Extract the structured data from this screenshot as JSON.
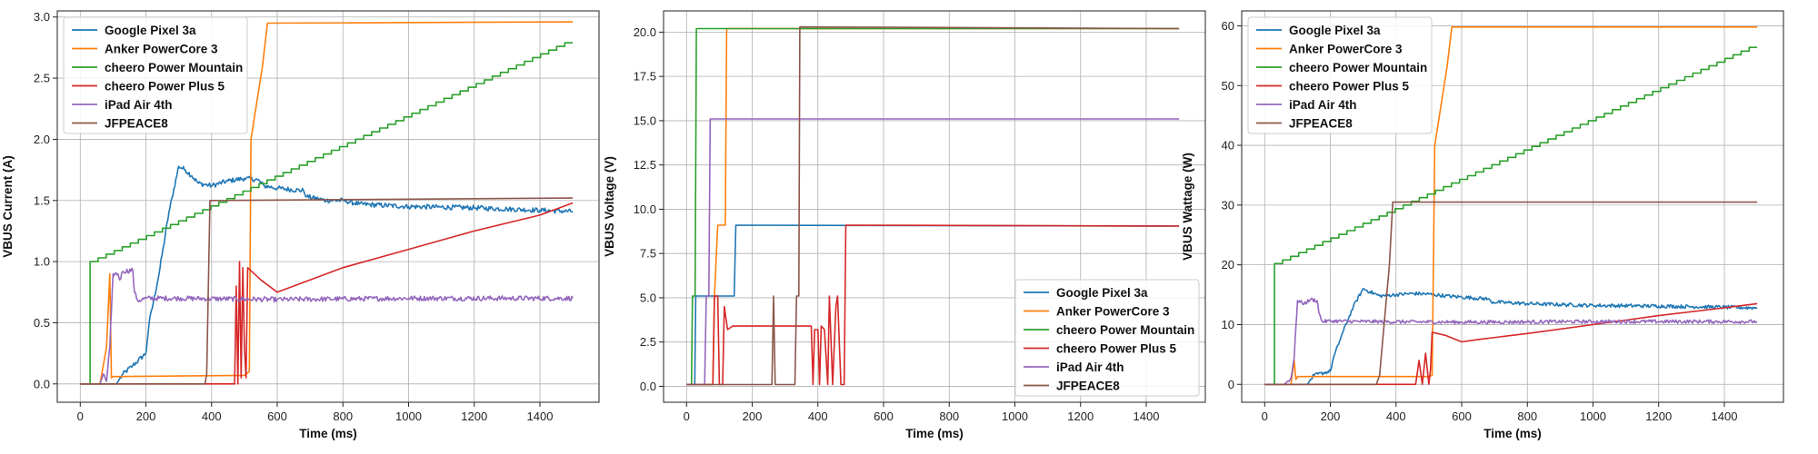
{
  "chart_data": [
    {
      "type": "line",
      "xlabel": "Time (ms)",
      "ylabel": "VBUS Current (A)",
      "xlim": [
        -70,
        1580
      ],
      "ylim": [
        -0.15,
        3.05
      ],
      "xticks": [
        0,
        200,
        400,
        600,
        800,
        1000,
        1200,
        1400
      ],
      "yticks": [
        0.0,
        0.5,
        1.0,
        1.5,
        2.0,
        2.5,
        3.0
      ],
      "ytick_labels": [
        "0.0",
        "0.5",
        "1.0",
        "1.5",
        "2.0",
        "2.5",
        "3.0"
      ],
      "grid": true,
      "legend_position": "upper-left",
      "series": [
        {
          "name": "Google Pixel 3a",
          "color": "#1f77b4",
          "noise": 0.02,
          "points": [
            [
              0,
              0
            ],
            [
              110,
              0
            ],
            [
              130,
              0.08
            ],
            [
              160,
              0.15
            ],
            [
              200,
              0.25
            ],
            [
              210,
              0.5
            ],
            [
              240,
              0.9
            ],
            [
              270,
              1.4
            ],
            [
              300,
              1.78
            ],
            [
              320,
              1.75
            ],
            [
              340,
              1.7
            ],
            [
              360,
              1.64
            ],
            [
              400,
              1.62
            ],
            [
              450,
              1.66
            ],
            [
              500,
              1.68
            ],
            [
              540,
              1.67
            ],
            [
              560,
              1.62
            ],
            [
              600,
              1.6
            ],
            [
              680,
              1.58
            ],
            [
              690,
              1.53
            ],
            [
              750,
              1.5
            ],
            [
              800,
              1.5
            ],
            [
              850,
              1.47
            ],
            [
              1000,
              1.45
            ],
            [
              1200,
              1.44
            ],
            [
              1300,
              1.43
            ],
            [
              1400,
              1.42
            ],
            [
              1500,
              1.41
            ]
          ]
        },
        {
          "name": "Anker PowerCore 3",
          "color": "#ff7f0e",
          "noise": 0,
          "points": [
            [
              0,
              0
            ],
            [
              60,
              0
            ],
            [
              80,
              0.3
            ],
            [
              90,
              0.9
            ],
            [
              95,
              0.05
            ],
            [
              100,
              0.06
            ],
            [
              500,
              0.07
            ],
            [
              515,
              0.1
            ],
            [
              520,
              2.0
            ],
            [
              555,
              2.6
            ],
            [
              570,
              2.95
            ],
            [
              1500,
              2.96
            ]
          ]
        },
        {
          "name": "cheero Power Mountain",
          "color": "#2ca02c",
          "noise": 0,
          "steps": 60,
          "points": [
            [
              0,
              0
            ],
            [
              25,
              0
            ],
            [
              30,
              1.0
            ],
            [
              1500,
              2.82
            ]
          ]
        },
        {
          "name": "cheero Power Plus 5",
          "color": "#d62728",
          "noise": 0,
          "points": [
            [
              0,
              0
            ],
            [
              470,
              0
            ],
            [
              475,
              0.8
            ],
            [
              480,
              0
            ],
            [
              485,
              1.0
            ],
            [
              490,
              0.05
            ],
            [
              495,
              0.95
            ],
            [
              500,
              0.3
            ],
            [
              505,
              0.05
            ],
            [
              510,
              0.95
            ],
            [
              550,
              0.85
            ],
            [
              600,
              0.75
            ],
            [
              650,
              0.8
            ],
            [
              800,
              0.95
            ],
            [
              1000,
              1.1
            ],
            [
              1200,
              1.25
            ],
            [
              1400,
              1.38
            ],
            [
              1500,
              1.48
            ]
          ]
        },
        {
          "name": "iPad Air 4th",
          "color": "#9467bd",
          "noise": 0.02,
          "points": [
            [
              0,
              0
            ],
            [
              60,
              0
            ],
            [
              70,
              0.08
            ],
            [
              80,
              0.02
            ],
            [
              90,
              0.3
            ],
            [
              95,
              0.6
            ],
            [
              100,
              0.9
            ],
            [
              115,
              0.9
            ],
            [
              120,
              0.85
            ],
            [
              130,
              0.92
            ],
            [
              160,
              0.93
            ],
            [
              165,
              0.75
            ],
            [
              175,
              0.68
            ],
            [
              200,
              0.7
            ],
            [
              300,
              0.7
            ],
            [
              600,
              0.69
            ],
            [
              1000,
              0.7
            ],
            [
              1300,
              0.7
            ],
            [
              1500,
              0.7
            ]
          ]
        },
        {
          "name": "JFPEACE8",
          "color": "#8c564b",
          "noise": 0,
          "points": [
            [
              0,
              0
            ],
            [
              380,
              0
            ],
            [
              385,
              0.08
            ],
            [
              395,
              1.5
            ],
            [
              1500,
              1.52
            ]
          ]
        }
      ]
    },
    {
      "type": "line",
      "xlabel": "Time (ms)",
      "ylabel": "VBUS Voltage (V)",
      "xlim": [
        -70,
        1580
      ],
      "ylim": [
        -0.9,
        21.2
      ],
      "xticks": [
        0,
        200,
        400,
        600,
        800,
        1000,
        1200,
        1400
      ],
      "yticks": [
        0,
        2.5,
        5,
        7.5,
        10,
        12.5,
        15,
        17.5,
        20
      ],
      "ytick_labels": [
        "0.0",
        "2.5",
        "5.0",
        "7.5",
        "10.0",
        "12.5",
        "15.0",
        "17.5",
        "20.0"
      ],
      "grid": true,
      "legend_position": "lower-right",
      "series": [
        {
          "name": "Google Pixel 3a",
          "color": "#1f77b4",
          "noise": 0,
          "points": [
            [
              0,
              0.1
            ],
            [
              25,
              0.1
            ],
            [
              28,
              5.1
            ],
            [
              145,
              5.1
            ],
            [
              150,
              9.1
            ],
            [
              1500,
              9.05
            ]
          ]
        },
        {
          "name": "Anker PowerCore 3",
          "color": "#ff7f0e",
          "noise": 0,
          "points": [
            [
              0,
              0.1
            ],
            [
              80,
              0.1
            ],
            [
              85,
              5.1
            ],
            [
              95,
              9.1
            ],
            [
              118,
              9.1
            ],
            [
              122,
              20.2
            ],
            [
              1500,
              20.2
            ]
          ]
        },
        {
          "name": "cheero Power Mountain",
          "color": "#2ca02c",
          "noise": 0,
          "points": [
            [
              0,
              0.1
            ],
            [
              15,
              0.1
            ],
            [
              18,
              5.1
            ],
            [
              26,
              5.1
            ],
            [
              30,
              20.2
            ],
            [
              1500,
              20.2
            ]
          ]
        },
        {
          "name": "cheero Power Plus 5",
          "color": "#d62728",
          "noise": 0,
          "points": [
            [
              0,
              0.1
            ],
            [
              80,
              0.1
            ],
            [
              85,
              5.1
            ],
            [
              95,
              5.1
            ],
            [
              100,
              0.1
            ],
            [
              110,
              0.1
            ],
            [
              115,
              4.5
            ],
            [
              125,
              3.2
            ],
            [
              140,
              3.4
            ],
            [
              380,
              3.4
            ],
            [
              385,
              0.1
            ],
            [
              390,
              3.2
            ],
            [
              400,
              3.2
            ],
            [
              405,
              0.1
            ],
            [
              410,
              3.4
            ],
            [
              420,
              3.2
            ],
            [
              430,
              0.1
            ],
            [
              435,
              5.1
            ],
            [
              445,
              0.1
            ],
            [
              455,
              4.5
            ],
            [
              460,
              5.1
            ],
            [
              470,
              0.1
            ],
            [
              480,
              0.1
            ],
            [
              485,
              9.1
            ],
            [
              1500,
              9.05
            ]
          ]
        },
        {
          "name": "iPad Air 4th",
          "color": "#9467bd",
          "noise": 0,
          "points": [
            [
              0,
              0.1
            ],
            [
              55,
              0.1
            ],
            [
              60,
              5.1
            ],
            [
              68,
              5.1
            ],
            [
              72,
              15.1
            ],
            [
              1500,
              15.1
            ]
          ]
        },
        {
          "name": "JFPEACE8",
          "color": "#8c564b",
          "noise": 0,
          "points": [
            [
              0,
              0.1
            ],
            [
              260,
              0.1
            ],
            [
              265,
              5.1
            ],
            [
              270,
              0.1
            ],
            [
              330,
              0.1
            ],
            [
              335,
              5.1
            ],
            [
              342,
              5.1
            ],
            [
              345,
              20.3
            ],
            [
              1500,
              20.2
            ]
          ]
        }
      ]
    },
    {
      "type": "line",
      "xlabel": "Time (ms)",
      "ylabel": "VBUS Wattage (W)",
      "xlim": [
        -70,
        1580
      ],
      "ylim": [
        -3,
        62.5
      ],
      "xticks": [
        0,
        200,
        400,
        600,
        800,
        1000,
        1200,
        1400
      ],
      "yticks": [
        0,
        10,
        20,
        30,
        40,
        50,
        60
      ],
      "ytick_labels": [
        "0",
        "10",
        "20",
        "30",
        "40",
        "50",
        "60"
      ],
      "grid": true,
      "legend_position": "upper-left",
      "series": [
        {
          "name": "Google Pixel 3a",
          "color": "#1f77b4",
          "noise": 0.3,
          "points": [
            [
              0,
              0
            ],
            [
              130,
              0
            ],
            [
              150,
              1.5
            ],
            [
              200,
              2.2
            ],
            [
              210,
              4.5
            ],
            [
              240,
              9
            ],
            [
              270,
              13
            ],
            [
              300,
              16
            ],
            [
              320,
              15.5
            ],
            [
              350,
              14.8
            ],
            [
              400,
              15
            ],
            [
              450,
              15.2
            ],
            [
              500,
              15.1
            ],
            [
              550,
              14.8
            ],
            [
              600,
              14.6
            ],
            [
              680,
              14.3
            ],
            [
              690,
              13.8
            ],
            [
              800,
              13.5
            ],
            [
              1000,
              13.2
            ],
            [
              1200,
              13.1
            ],
            [
              1400,
              12.9
            ],
            [
              1500,
              12.8
            ]
          ]
        },
        {
          "name": "Anker PowerCore 3",
          "color": "#ff7f0e",
          "noise": 0,
          "points": [
            [
              0,
              0
            ],
            [
              80,
              0
            ],
            [
              90,
              4.0
            ],
            [
              95,
              0.8
            ],
            [
              100,
              1.3
            ],
            [
              500,
              1.3
            ],
            [
              510,
              1.5
            ],
            [
              518,
              40
            ],
            [
              555,
              53
            ],
            [
              570,
              59.8
            ],
            [
              1500,
              59.8
            ]
          ]
        },
        {
          "name": "cheero Power Mountain",
          "color": "#2ca02c",
          "noise": 0,
          "steps": 60,
          "points": [
            [
              0,
              0
            ],
            [
              25,
              0
            ],
            [
              30,
              20.2
            ],
            [
              1500,
              57
            ]
          ]
        },
        {
          "name": "cheero Power Plus 5",
          "color": "#d62728",
          "noise": 0,
          "points": [
            [
              0,
              0
            ],
            [
              460,
              0
            ],
            [
              470,
              4
            ],
            [
              480,
              0
            ],
            [
              490,
              5.2
            ],
            [
              500,
              0
            ],
            [
              505,
              2.5
            ],
            [
              510,
              8.7
            ],
            [
              550,
              8.2
            ],
            [
              600,
              7.1
            ],
            [
              650,
              7.5
            ],
            [
              800,
              8.5
            ],
            [
              1000,
              10
            ],
            [
              1200,
              11.5
            ],
            [
              1400,
              12.8
            ],
            [
              1500,
              13.5
            ]
          ]
        },
        {
          "name": "iPad Air 4th",
          "color": "#9467bd",
          "noise": 0.3,
          "points": [
            [
              0,
              0
            ],
            [
              60,
              0
            ],
            [
              80,
              1.0
            ],
            [
              90,
              4.5
            ],
            [
              95,
              9.5
            ],
            [
              100,
              14
            ],
            [
              120,
              13.5
            ],
            [
              140,
              14.2
            ],
            [
              160,
              14
            ],
            [
              165,
              12
            ],
            [
              175,
              10.5
            ],
            [
              200,
              10.6
            ],
            [
              300,
              10.5
            ],
            [
              600,
              10.4
            ],
            [
              1000,
              10.5
            ],
            [
              1300,
              10.5
            ],
            [
              1500,
              10.5
            ]
          ]
        },
        {
          "name": "JFPEACE8",
          "color": "#8c564b",
          "noise": 0,
          "points": [
            [
              0,
              0
            ],
            [
              340,
              0
            ],
            [
              350,
              1.5
            ],
            [
              380,
              20
            ],
            [
              390,
              30.5
            ],
            [
              1500,
              30.5
            ]
          ]
        }
      ]
    }
  ]
}
